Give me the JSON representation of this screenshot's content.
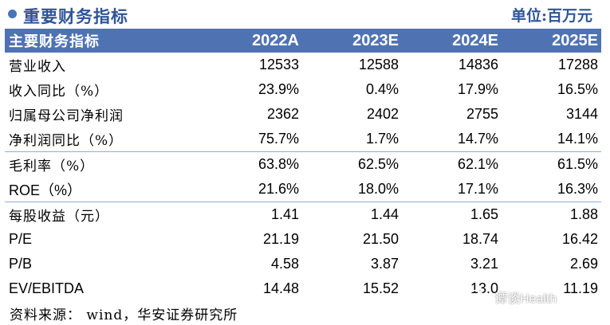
{
  "header": {
    "title": "重要财务指标",
    "unit": "单位:百万元"
  },
  "table": {
    "columns": [
      "主要财务指标",
      "2022A",
      "2023E",
      "2024E",
      "2025E"
    ],
    "groups": [
      [
        {
          "label": "营业收入",
          "values": [
            "12533",
            "12588",
            "14836",
            "17288"
          ]
        },
        {
          "label": "收入同比（%）",
          "values": [
            "23.9%",
            "0.4%",
            "17.9%",
            "16.5%"
          ]
        },
        {
          "label": "归属母公司净利润",
          "values": [
            "2362",
            "2402",
            "2755",
            "3144"
          ]
        },
        {
          "label": "净利润同比（%）",
          "values": [
            "75.7%",
            "1.7%",
            "14.7%",
            "14.1%"
          ]
        }
      ],
      [
        {
          "label": "毛利率（%）",
          "values": [
            "63.8%",
            "62.5%",
            "62.1%",
            "61.5%"
          ]
        },
        {
          "label": "ROE（%）",
          "values": [
            "21.6%",
            "18.0%",
            "17.1%",
            "16.3%"
          ]
        }
      ],
      [
        {
          "label": "每股收益（元）",
          "values": [
            "1.41",
            "1.44",
            "1.65",
            "1.88"
          ]
        },
        {
          "label": "P/E",
          "values": [
            "21.19",
            "21.50",
            "18.74",
            "16.42"
          ]
        },
        {
          "label": "P/B",
          "values": [
            "4.58",
            "3.87",
            "3.21",
            "2.69"
          ]
        },
        {
          "label": "EV/EBITDA",
          "values": [
            "14.48",
            "15.52",
            "13.0",
            "11.19"
          ]
        }
      ]
    ]
  },
  "footer": {
    "source": "资料来源： wind，华安证券研究所"
  },
  "watermark": {
    "text": "谭谈Health",
    "icon": "wechat-icon"
  },
  "colors": {
    "header_bg": "#4f73b2",
    "title_color": "#2f5597",
    "divider": "#8faadc"
  }
}
